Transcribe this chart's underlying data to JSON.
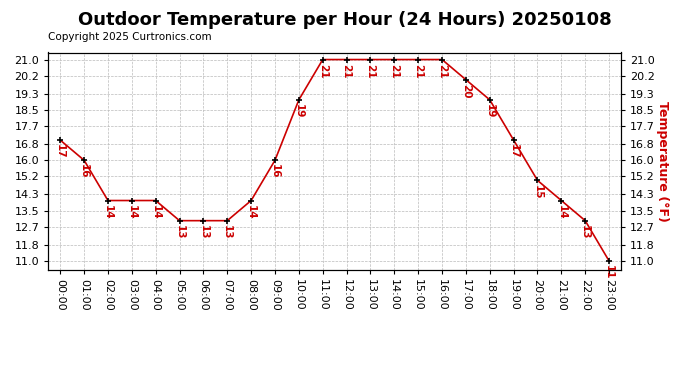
{
  "title": "Outdoor Temperature per Hour (24 Hours) 20250108",
  "copyright": "Copyright 2025 Curtronics.com",
  "ylabel": "Temperature (°F)",
  "hours": [
    0,
    1,
    2,
    3,
    4,
    5,
    6,
    7,
    8,
    9,
    10,
    11,
    12,
    13,
    14,
    15,
    16,
    17,
    18,
    19,
    20,
    21,
    22,
    23
  ],
  "temps": [
    17,
    16,
    14,
    14,
    14,
    13,
    13,
    13,
    14,
    16,
    19,
    21,
    21,
    21,
    21,
    21,
    21,
    20,
    19,
    17,
    15,
    14,
    13,
    11
  ],
  "xlabels": [
    "00:00",
    "01:00",
    "02:00",
    "03:00",
    "04:00",
    "05:00",
    "06:00",
    "07:00",
    "08:00",
    "09:00",
    "10:00",
    "11:00",
    "12:00",
    "13:00",
    "14:00",
    "15:00",
    "16:00",
    "17:00",
    "18:00",
    "19:00",
    "20:00",
    "21:00",
    "22:00",
    "23:00"
  ],
  "yticks": [
    11.0,
    11.8,
    12.7,
    13.5,
    14.3,
    15.2,
    16.0,
    16.8,
    17.7,
    18.5,
    19.3,
    20.2,
    21.0
  ],
  "ylim": [
    10.55,
    21.35
  ],
  "line_color": "#cc0000",
  "marker_color": "#000000",
  "label_color": "#cc0000",
  "grid_color": "#bbbbbb",
  "bg_color": "#ffffff",
  "title_fontsize": 13,
  "copyright_fontsize": 7.5,
  "ylabel_fontsize": 9,
  "tick_fontsize": 8,
  "annotation_fontsize": 7.5
}
